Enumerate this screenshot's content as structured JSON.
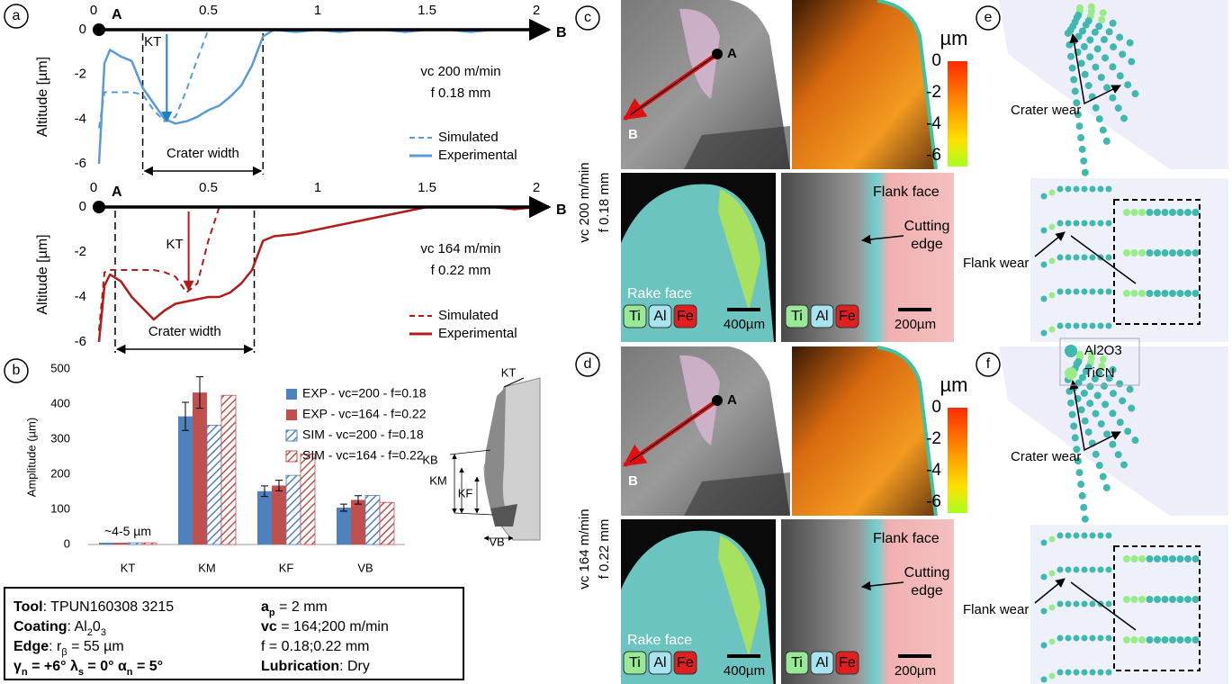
{
  "chart_data": [
    {
      "type": "line",
      "panel": "a",
      "y_label": "Altitude [µm]",
      "start_point": "A",
      "end_point": "B",
      "xlim": [
        0,
        2
      ],
      "xticks": [
        0,
        0.5,
        1,
        1.5,
        2
      ],
      "ylim": [
        -6,
        0
      ],
      "yticks": [
        0,
        -2,
        -4,
        -6
      ],
      "kt_label": "KT",
      "kt_x": 0.31,
      "kt_depth": -4.1,
      "crater_label": "Crater width",
      "crater_bounds": [
        0.2,
        0.75
      ],
      "condition": [
        "vc 200 m/min",
        "f 0.18 mm"
      ],
      "legend": "lower right",
      "x": [
        0,
        0.025,
        0.05,
        0.1,
        0.15,
        0.2,
        0.25,
        0.3,
        0.35,
        0.4,
        0.45,
        0.5,
        0.55,
        0.6,
        0.65,
        0.7,
        0.75,
        0.8,
        0.9,
        1,
        1.1,
        1.2,
        1.3,
        1.4,
        1.5,
        1.6,
        1.7,
        1.8,
        1.9,
        2
      ],
      "series": [
        {
          "name": "Simulated",
          "color": "#5b9bd5",
          "dashed": true,
          "values": [
            -4.4,
            -2.8,
            -2.8,
            -2.8,
            -2.8,
            -2.9,
            -3.6,
            -4.1,
            -3.9,
            -2.7,
            -1.3,
            0,
            null,
            null,
            null,
            null,
            null,
            null,
            null,
            null,
            null,
            null,
            null,
            null,
            null,
            null,
            null,
            null,
            null,
            null
          ]
        },
        {
          "name": "Experimental",
          "color": "#5b9bd5",
          "dashed": false,
          "values": [
            -6,
            -1.5,
            -0.9,
            -1.2,
            -1.4,
            -2.6,
            -3.3,
            -4.0,
            -4.2,
            -4.1,
            -3.9,
            -3.6,
            -3.4,
            -3.0,
            -2.5,
            -1.6,
            -0.3,
            0,
            -0.1,
            0,
            -0.1,
            0,
            0,
            -0.1,
            0,
            0,
            -0.1,
            0,
            0,
            0
          ]
        }
      ]
    },
    {
      "type": "line",
      "y_label": "Altitude [µm]",
      "start_point": "A",
      "end_point": "B",
      "xlim": [
        0,
        2
      ],
      "xticks": [
        0,
        0.5,
        1,
        1.5,
        2
      ],
      "ylim": [
        -6,
        0
      ],
      "yticks": [
        0,
        -2,
        -4,
        -6
      ],
      "kt_label": "KT",
      "kt_x": 0.41,
      "kt_depth": -3.7,
      "crater_label": "Crater width",
      "crater_bounds": [
        0.074,
        0.71
      ],
      "condition": [
        "vc 164 m/min",
        "f 0.22 mm"
      ],
      "legend": "lower right",
      "x": [
        0,
        0.025,
        0.05,
        0.1,
        0.15,
        0.2,
        0.25,
        0.3,
        0.35,
        0.4,
        0.45,
        0.5,
        0.55,
        0.6,
        0.65,
        0.7,
        0.75,
        0.8,
        0.9,
        1,
        1.1,
        1.2,
        1.3,
        1.4,
        1.5,
        1.6,
        1.7,
        1.8,
        1.9,
        2
      ],
      "series": [
        {
          "name": "Simulated",
          "color": "#b31b1b",
          "dashed": true,
          "values": [
            -5.5,
            -2.9,
            -2.8,
            -2.8,
            -2.8,
            -2.8,
            -2.8,
            -2.9,
            -3.1,
            -3.8,
            -3.4,
            -1.5,
            0,
            null,
            null,
            null,
            null,
            null,
            null,
            null,
            null,
            null,
            null,
            null,
            null,
            null,
            null,
            null,
            null,
            null
          ]
        },
        {
          "name": "Experimental",
          "color": "#b31b1b",
          "dashed": false,
          "values": [
            -6,
            -3.5,
            -3.0,
            -3.3,
            -4.0,
            -4.5,
            -5.0,
            -4.6,
            -4.3,
            -4.2,
            -4.1,
            -4.0,
            -4.0,
            -3.8,
            -3.4,
            -2.8,
            -1.5,
            -1.3,
            -1.2,
            -1.0,
            -0.8,
            -0.6,
            -0.4,
            -0.2,
            0,
            0,
            0,
            0,
            -0.1,
            0
          ]
        }
      ]
    },
    {
      "type": "bar",
      "panel": "b",
      "y_label": "Amplitude (µm)",
      "categories": [
        "KT",
        "KM",
        "KF",
        "VB"
      ],
      "ylim": [
        0,
        500
      ],
      "yticks": [
        0,
        100,
        200,
        300,
        400,
        500
      ],
      "annotation": "~4-5 µm",
      "legend": "upper right",
      "series": [
        {
          "name": "EXP - vc=200 - f=0.18",
          "color": "#4f81bd",
          "hatched": false,
          "values": [
            5,
            365,
            152,
            105
          ],
          "errors": [
            null,
            40,
            15,
            10
          ]
        },
        {
          "name": "EXP - vc=164 - f=0.22",
          "color": "#c0504d",
          "hatched": false,
          "values": [
            5,
            433,
            168,
            127
          ],
          "errors": [
            null,
            45,
            15,
            12
          ]
        },
        {
          "name": "SIM - vc=200 - f=0.18",
          "color": "#4f81bd",
          "hatched": true,
          "values": [
            5,
            340,
            197,
            140
          ]
        },
        {
          "name": "SIM - vc=164 - f=0.22",
          "color": "#c0504d",
          "hatched": true,
          "values": [
            5,
            425,
            258,
            120
          ]
        }
      ],
      "diagram_labels": [
        "KT",
        "KB",
        "KM",
        "KF",
        "VB"
      ]
    }
  ],
  "tool_box": {
    "lines": [
      [
        "Tool",
        ": TPUN160308 3215"
      ],
      [
        "Coating",
        ": Al",
        "2",
        "0",
        "3"
      ],
      [
        "Edge",
        ": r",
        "β",
        " = 55 µm"
      ],
      [
        "γ",
        "n",
        " = +6° λ",
        "s",
        " = 0° α",
        "n",
        " = 5°"
      ],
      [
        "a",
        "p",
        " = 2 mm"
      ],
      [
        "vc",
        " = 164;200 m/min"
      ],
      [
        "f = 0.18;0.22 mm"
      ],
      [
        "Lubrication",
        ": Dry"
      ]
    ]
  },
  "micrographs": [
    {
      "panel": "c",
      "condition": [
        "vc 200 m/min",
        "f 0.18 mm"
      ],
      "point_a": "A",
      "point_b": "B",
      "unit": "µm",
      "colorbar_ticks": [
        0,
        -2,
        -4,
        -6
      ],
      "rake_face": "Rake face",
      "flank_face": "Flank face",
      "cutting_edge": [
        "Cutting",
        "edge"
      ],
      "elements": [
        "Ti",
        "Al",
        "Fe"
      ],
      "scale_bars": [
        "400µm",
        "200µm"
      ]
    },
    {
      "panel": "d",
      "condition": [
        "vc 164 m/min",
        "f 0.22 mm"
      ],
      "point_a": "A",
      "point_b": "B",
      "unit": "µm",
      "colorbar_ticks": [
        0,
        -2,
        -4,
        -6
      ],
      "rake_face": "Rake face",
      "flank_face": "Flank face",
      "cutting_edge": [
        "Cutting",
        "edge"
      ],
      "elements": [
        "Ti",
        "Al",
        "Fe"
      ],
      "scale_bars": [
        "400µm",
        "200µm"
      ]
    }
  ],
  "simulations": [
    {
      "panel": "e",
      "crater": "Crater wear",
      "flank": "Flank wear"
    },
    {
      "panel": "f",
      "crater": "Crater wear",
      "flank": "Flank wear"
    }
  ],
  "layer_legend": [
    {
      "name": "Al2O3",
      "color": "#3fb8b0"
    },
    {
      "name": "TiCN",
      "color": "#98ec88"
    }
  ]
}
